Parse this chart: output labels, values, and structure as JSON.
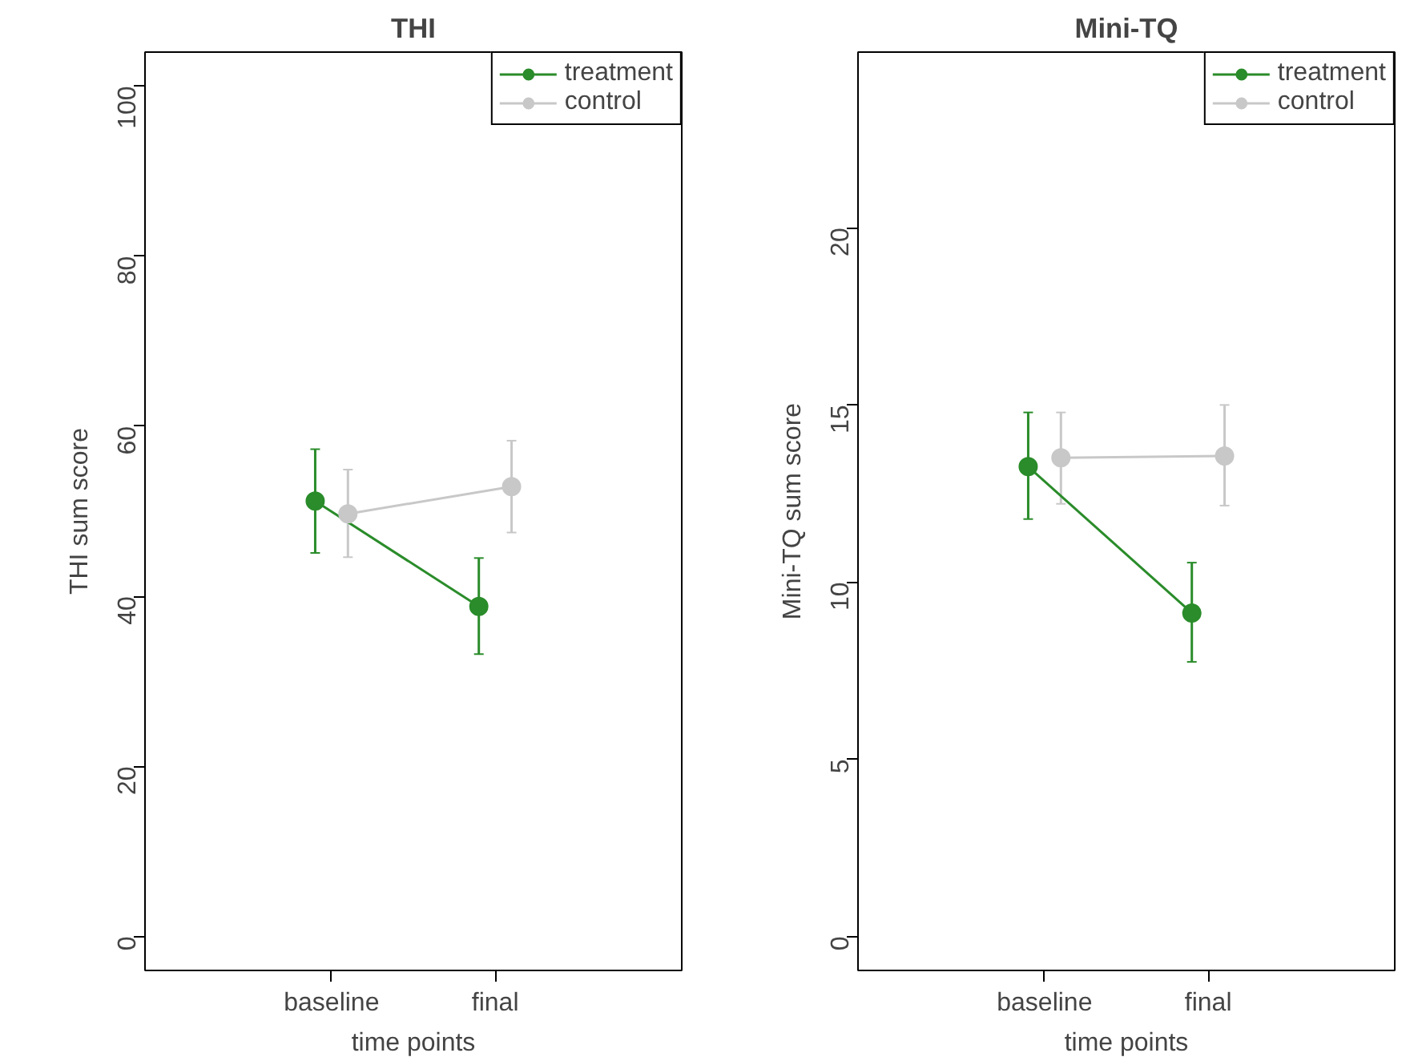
{
  "chart_data": [
    {
      "type": "line",
      "title": "THI",
      "xlabel": "time points",
      "ylabel": "THI sum score",
      "categories": [
        "baseline",
        "final"
      ],
      "ylim": [
        -4,
        104
      ],
      "yticks": [
        0,
        20,
        40,
        60,
        80,
        100
      ],
      "grid": false,
      "legend": "top right",
      "marker": "circle",
      "line_style": "solid",
      "series": [
        {
          "name": "treatment",
          "color": "#2a8c2a",
          "values": [
            51.2,
            38.8
          ],
          "errors": [
            [
              45.1,
              57.3
            ],
            [
              33.2,
              44.5
            ]
          ]
        },
        {
          "name": "control",
          "color": "#c8c8c8",
          "values": [
            49.7,
            52.9
          ],
          "errors": [
            [
              44.6,
              54.9
            ],
            [
              47.5,
              58.3
            ]
          ]
        }
      ]
    },
    {
      "type": "line",
      "title": "Mini-TQ",
      "xlabel": "time points",
      "ylabel": "Mini-TQ sum score",
      "categories": [
        "baseline",
        "final"
      ],
      "ylim": [
        -0.96,
        24.96
      ],
      "yticks": [
        0,
        5,
        10,
        15,
        20
      ],
      "grid": false,
      "legend": "top right",
      "marker": "circle",
      "line_style": "solid",
      "series": [
        {
          "name": "treatment",
          "color": "#2a8c2a",
          "values": [
            13.26,
            9.13
          ],
          "errors": [
            [
              11.78,
              14.79
            ],
            [
              7.75,
              10.55
            ]
          ]
        },
        {
          "name": "control",
          "color": "#c8c8c8",
          "values": [
            13.51,
            13.56
          ],
          "errors": [
            [
              12.21,
              14.79
            ],
            [
              12.16,
              15.0
            ]
          ]
        }
      ]
    }
  ]
}
